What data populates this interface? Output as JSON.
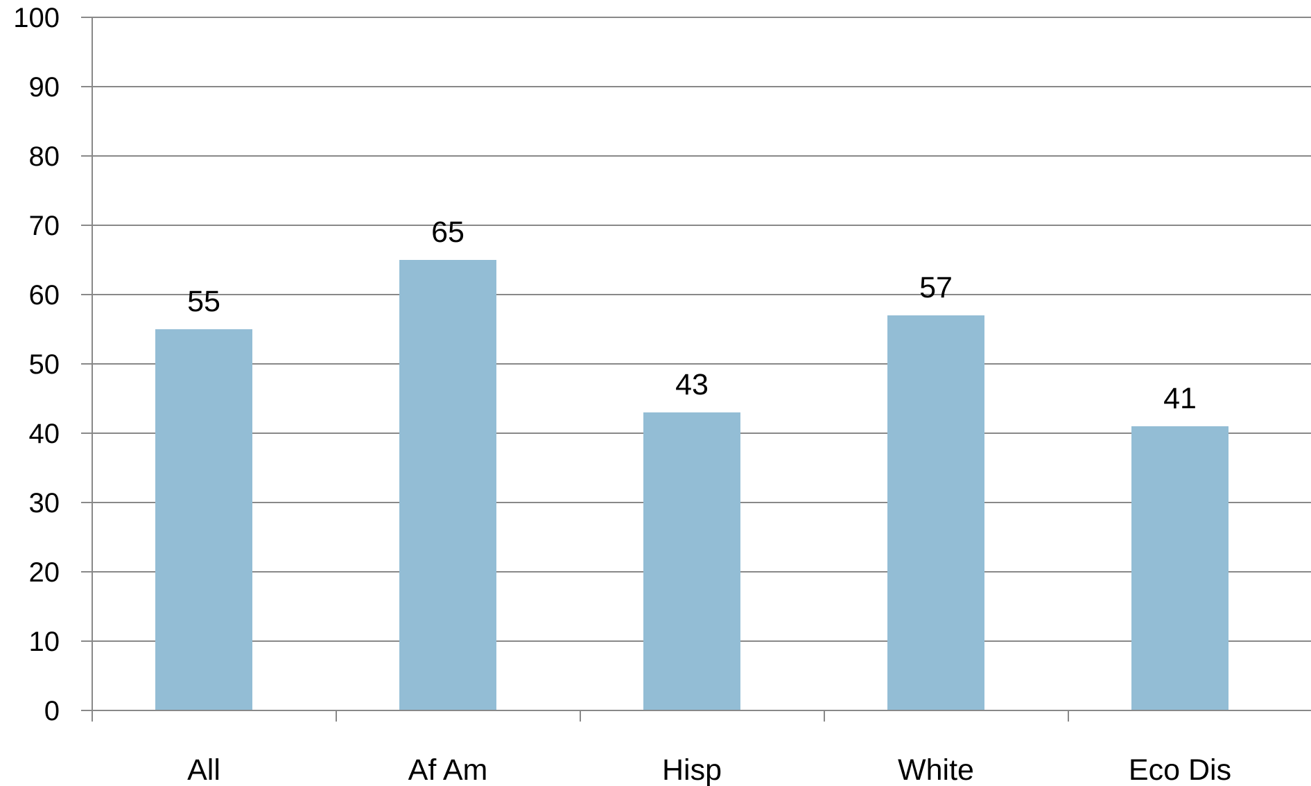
{
  "chart_data": {
    "type": "bar",
    "categories": [
      "All",
      "Af Am",
      "Hisp",
      "White",
      "Eco Dis"
    ],
    "values": [
      55,
      65,
      43,
      57,
      41
    ],
    "data_labels": [
      "55",
      "65",
      "43",
      "57",
      "41"
    ],
    "title": "",
    "xlabel": "",
    "ylabel": "",
    "ylim": [
      0,
      100
    ],
    "yticks": [
      0,
      10,
      20,
      30,
      40,
      50,
      60,
      70,
      80,
      90,
      100
    ],
    "ytick_labels": [
      "0",
      "10",
      "20",
      "30",
      "40",
      "50",
      "60",
      "70",
      "80",
      "90",
      "100"
    ],
    "grid": true,
    "legend": "none",
    "colors": {
      "bar": "#93BDD5",
      "gridline": "#888888",
      "axis": "#888888",
      "text": "#000000"
    }
  }
}
